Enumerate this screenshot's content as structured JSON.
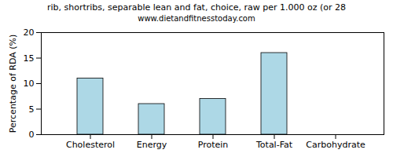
{
  "chart_data": {
    "type": "bar",
    "title": "rib, shortribs, separable lean and fat, choice, raw per 1.000 oz (or 28",
    "subtitle": "www.dietandfitnesstoday.com",
    "y_label": "Percentage of RDA (%)",
    "categories": [
      "Cholesterol",
      "Energy",
      "Protein",
      "Total-Fat",
      "Carbohydrate"
    ],
    "values": [
      11,
      6,
      7,
      16,
      0
    ],
    "color": "#add8e6",
    "ylim": [
      0,
      20
    ],
    "yticks": [
      0,
      5,
      10,
      15,
      20
    ],
    "grid": false
  }
}
